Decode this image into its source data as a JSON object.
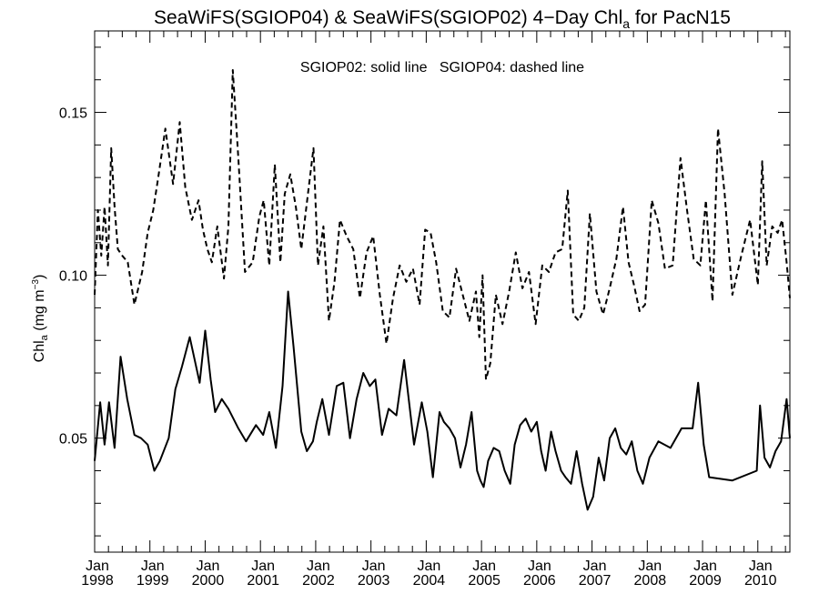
{
  "chart_data": {
    "type": "line",
    "title": "SeaWiFS(SGIOP04) & SeaWiFS(SGIOP02) 4−Day Chl",
    "title_subscript": "a",
    "title_suffix": " for PacN15",
    "annotation": "SGIOP02: solid line   SGIOP04: dashed line",
    "ylabel": "Chl",
    "ylabel_subscript": "a",
    "ylabel_units": " (mg m",
    "ylabel_superscript": "−3",
    "ylabel_close": ")",
    "ylim": [
      0.015,
      0.175
    ],
    "xlim": [
      1998.0,
      2010.58
    ],
    "x_axis_type": "date",
    "grid": false,
    "yticks": [
      {
        "value": 0.05,
        "label": "0.05"
      },
      {
        "value": 0.1,
        "label": "0.10"
      },
      {
        "value": 0.15,
        "label": "0.15"
      }
    ],
    "xticks": [
      {
        "value": 1998.0,
        "month": "Jan",
        "year": "1998"
      },
      {
        "value": 1999.0,
        "month": "Jan",
        "year": "1999"
      },
      {
        "value": 2000.0,
        "month": "Jan",
        "year": "2000"
      },
      {
        "value": 2001.0,
        "month": "Jan",
        "year": "2001"
      },
      {
        "value": 2002.0,
        "month": "Jan",
        "year": "2002"
      },
      {
        "value": 2003.0,
        "month": "Jan",
        "year": "2003"
      },
      {
        "value": 2004.0,
        "month": "Jan",
        "year": "2004"
      },
      {
        "value": 2005.0,
        "month": "Jan",
        "year": "2005"
      },
      {
        "value": 2006.0,
        "month": "Jan",
        "year": "2006"
      },
      {
        "value": 2007.0,
        "month": "Jan",
        "year": "2007"
      },
      {
        "value": 2008.0,
        "month": "Jan",
        "year": "2008"
      },
      {
        "value": 2009.0,
        "month": "Jan",
        "year": "2009"
      },
      {
        "value": 2010.0,
        "month": "Jan",
        "year": "2010"
      }
    ],
    "series": [
      {
        "style": "solid",
        "x": [
          1998.0,
          1998.1,
          1998.18,
          1998.26,
          1998.36,
          1998.47,
          1998.59,
          1998.72,
          1998.84,
          1998.96,
          1999.08,
          1999.18,
          1999.34,
          1999.46,
          1999.58,
          1999.72,
          1999.9,
          2000.0,
          2000.1,
          2000.18,
          2000.3,
          2000.42,
          2000.6,
          2000.74,
          2000.92,
          2001.05,
          2001.16,
          2001.28,
          2001.4,
          2001.5,
          2001.6,
          2001.74,
          2001.84,
          2001.95,
          2002.02,
          2002.12,
          2002.24,
          2002.38,
          2002.5,
          2002.62,
          2002.74,
          2002.86,
          2002.98,
          2003.08,
          2003.2,
          2003.32,
          2003.46,
          2003.6,
          2003.78,
          2003.92,
          2004.02,
          2004.12,
          2004.24,
          2004.32,
          2004.42,
          2004.52,
          2004.62,
          2004.72,
          2004.82,
          2004.92,
          2004.98,
          2005.04,
          2005.12,
          2005.22,
          2005.32,
          2005.42,
          2005.52,
          2005.6,
          2005.7,
          2005.8,
          2005.9,
          2006.0,
          2006.08,
          2006.16,
          2006.26,
          2006.34,
          2006.44,
          2006.52,
          2006.62,
          2006.72,
          2006.82,
          2006.92,
          2007.02,
          2007.12,
          2007.22,
          2007.32,
          2007.42,
          2007.52,
          2007.62,
          2007.72,
          2007.82,
          2007.92,
          2008.04,
          2008.2,
          2008.42,
          2008.62,
          2008.72,
          2008.82,
          2008.92,
          2009.02,
          2009.12,
          2009.54,
          2009.98,
          2010.04,
          2010.12,
          2010.22,
          2010.32,
          2010.42,
          2010.52,
          2010.58
        ],
        "y": [
          0.043,
          0.061,
          0.048,
          0.061,
          0.047,
          0.075,
          0.062,
          0.051,
          0.05,
          0.048,
          0.04,
          0.043,
          0.05,
          0.065,
          0.072,
          0.081,
          0.067,
          0.083,
          0.068,
          0.058,
          0.062,
          0.059,
          0.053,
          0.049,
          0.054,
          0.051,
          0.058,
          0.047,
          0.066,
          0.095,
          0.078,
          0.052,
          0.046,
          0.049,
          0.055,
          0.062,
          0.051,
          0.066,
          0.067,
          0.05,
          0.062,
          0.07,
          0.066,
          0.068,
          0.051,
          0.059,
          0.057,
          0.074,
          0.048,
          0.061,
          0.052,
          0.038,
          0.058,
          0.055,
          0.053,
          0.05,
          0.041,
          0.048,
          0.058,
          0.04,
          0.037,
          0.035,
          0.043,
          0.047,
          0.046,
          0.04,
          0.036,
          0.048,
          0.054,
          0.056,
          0.052,
          0.055,
          0.046,
          0.04,
          0.052,
          0.046,
          0.04,
          0.038,
          0.036,
          0.046,
          0.036,
          0.028,
          0.032,
          0.044,
          0.037,
          0.05,
          0.053,
          0.047,
          0.045,
          0.049,
          0.04,
          0.036,
          0.044,
          0.049,
          0.047,
          0.053,
          0.053,
          0.053,
          0.067,
          0.048,
          0.038,
          0.037,
          0.04,
          0.06,
          0.044,
          0.041,
          0.046,
          0.049,
          0.062,
          0.05
        ],
        "note_x": "series values estimated from plot"
      },
      {
        "style": "dashed",
        "x": [
          1998.0,
          1998.06,
          1998.12,
          1998.18,
          1998.24,
          1998.3,
          1998.36,
          1998.42,
          1998.5,
          1998.6,
          1998.72,
          1998.86,
          1998.96,
          1999.06,
          1999.16,
          1999.28,
          1999.42,
          1999.54,
          1999.64,
          1999.76,
          1999.88,
          1999.96,
          2000.04,
          2000.12,
          2000.22,
          2000.34,
          2000.42,
          2000.5,
          2000.6,
          2000.72,
          2000.86,
          2000.98,
          2001.06,
          2001.16,
          2001.26,
          2001.36,
          2001.44,
          2001.54,
          2001.64,
          2001.74,
          2001.86,
          2001.96,
          2002.04,
          2002.14,
          2002.24,
          2002.34,
          2002.44,
          2002.56,
          2002.68,
          2002.8,
          2002.92,
          2003.04,
          2003.16,
          2003.28,
          2003.4,
          2003.52,
          2003.64,
          2003.76,
          2003.88,
          2003.98,
          2004.08,
          2004.18,
          2004.3,
          2004.42,
          2004.54,
          2004.66,
          2004.78,
          2004.9,
          2004.96,
          2005.02,
          2005.08,
          2005.16,
          2005.26,
          2005.38,
          2005.5,
          2005.62,
          2005.74,
          2005.86,
          2005.98,
          2006.1,
          2006.22,
          2006.34,
          2006.46,
          2006.56,
          2006.66,
          2006.76,
          2006.86,
          2006.96,
          2007.08,
          2007.2,
          2007.32,
          2007.44,
          2007.56,
          2007.66,
          2007.76,
          2007.86,
          2007.96,
          2008.08,
          2008.2,
          2008.32,
          2008.46,
          2008.6,
          2008.72,
          2008.84,
          2008.96,
          2009.06,
          2009.18,
          2009.28,
          2009.4,
          2009.54,
          2009.7,
          2009.86,
          2010.0,
          2010.08,
          2010.16,
          2010.26,
          2010.36,
          2010.44,
          2010.52,
          2010.58
        ],
        "y": [
          0.094,
          0.12,
          0.106,
          0.121,
          0.103,
          0.139,
          0.121,
          0.108,
          0.106,
          0.104,
          0.091,
          0.101,
          0.113,
          0.12,
          0.131,
          0.145,
          0.128,
          0.147,
          0.127,
          0.117,
          0.123,
          0.114,
          0.108,
          0.104,
          0.115,
          0.099,
          0.115,
          0.163,
          0.136,
          0.101,
          0.104,
          0.118,
          0.123,
          0.103,
          0.134,
          0.104,
          0.125,
          0.131,
          0.121,
          0.108,
          0.125,
          0.139,
          0.103,
          0.115,
          0.086,
          0.098,
          0.117,
          0.112,
          0.108,
          0.093,
          0.107,
          0.112,
          0.094,
          0.079,
          0.093,
          0.103,
          0.098,
          0.102,
          0.091,
          0.114,
          0.113,
          0.104,
          0.089,
          0.087,
          0.102,
          0.094,
          0.086,
          0.095,
          0.081,
          0.1,
          0.068,
          0.073,
          0.094,
          0.085,
          0.095,
          0.107,
          0.096,
          0.101,
          0.085,
          0.103,
          0.101,
          0.107,
          0.108,
          0.126,
          0.088,
          0.086,
          0.09,
          0.119,
          0.095,
          0.088,
          0.096,
          0.105,
          0.121,
          0.104,
          0.097,
          0.089,
          0.091,
          0.123,
          0.116,
          0.102,
          0.103,
          0.136,
          0.12,
          0.105,
          0.103,
          0.123,
          0.092,
          0.145,
          0.125,
          0.094,
          0.106,
          0.117,
          0.097,
          0.135,
          0.103,
          0.115,
          0.113,
          0.117,
          0.104,
          0.093
        ]
      }
    ]
  }
}
